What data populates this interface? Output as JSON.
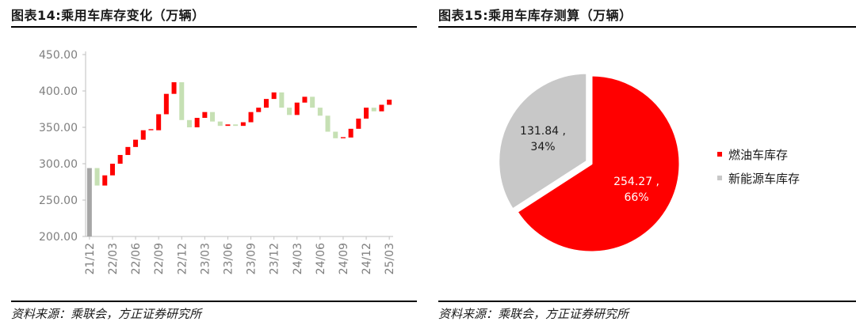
{
  "left_panel": {
    "title": "图表14:乘用车库存变化（万辆）",
    "source": "资料来源：乘联会，方正证券研究所"
  },
  "right_panel": {
    "title": "图表15:乘用车库存测算（万辆）",
    "source": "资料来源：乘联会，方正证券研究所"
  },
  "colors": {
    "increase": "#ff0000",
    "decrease": "#c6e0b4",
    "total": "#a6a6a6",
    "fuel": "#ff0000",
    "nev": "#c8c8c8"
  },
  "chart_data": [
    {
      "type": "bar",
      "subtype": "waterfall",
      "title": "",
      "ylim": [
        200,
        450
      ],
      "yticks": [
        "200.00",
        "250.00",
        "300.00",
        "350.00",
        "400.00",
        "450.00"
      ],
      "xtick_labels": [
        "21/12",
        "22/03",
        "22/06",
        "22/09",
        "22/12",
        "23/03",
        "23/06",
        "23/09",
        "23/12",
        "24/03",
        "24/06",
        "24/09",
        "24/12",
        "25/03"
      ],
      "months": [
        "21/12",
        "22/01",
        "22/02",
        "22/03",
        "22/04",
        "22/05",
        "22/06",
        "22/07",
        "22/08",
        "22/09",
        "22/10",
        "22/11",
        "22/12",
        "23/01",
        "23/02",
        "23/03",
        "23/04",
        "23/05",
        "23/06",
        "23/07",
        "23/08",
        "23/09",
        "23/10",
        "23/11",
        "23/12",
        "24/01",
        "24/02",
        "24/03",
        "24/04",
        "24/05",
        "24/06",
        "24/07",
        "24/08",
        "24/09",
        "24/10",
        "24/11",
        "24/12",
        "25/01",
        "25/02",
        "25/03"
      ],
      "levels": [
        294,
        270,
        284,
        300,
        312,
        323,
        333,
        346,
        346,
        368,
        396,
        412,
        360,
        350,
        363,
        371,
        358,
        352,
        354,
        352,
        357,
        371,
        377,
        389,
        398,
        377,
        367,
        384,
        392,
        377,
        366,
        344,
        335,
        336,
        348,
        362,
        377,
        372,
        381,
        388
      ],
      "grid": false,
      "legend": "none"
    },
    {
      "type": "pie",
      "title": "",
      "labels": [
        "燃油车库存",
        "新能源车库存"
      ],
      "values": [
        254.27,
        131.84
      ],
      "percent": [
        66,
        34
      ],
      "slice_labels": [
        "254.27 ,",
        "66%",
        "131.84 ,",
        "34%"
      ],
      "legend": "right"
    }
  ]
}
